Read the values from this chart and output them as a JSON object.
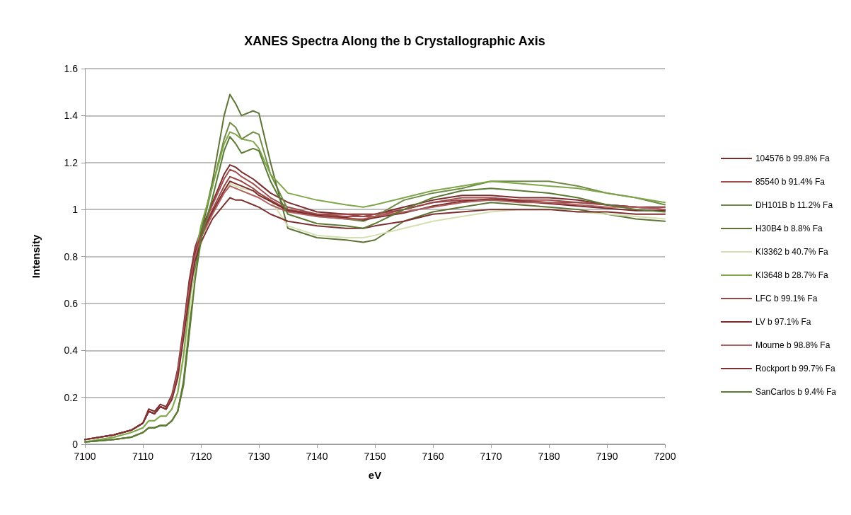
{
  "chart_data": {
    "type": "line",
    "title": "XANES Spectra Along the b Crystallographic Axis",
    "xlabel": "eV",
    "ylabel": "Intensity",
    "xlim": [
      7100,
      7200
    ],
    "xticks": [
      7100,
      7110,
      7120,
      7130,
      7140,
      7150,
      7160,
      7170,
      7180,
      7190,
      7200
    ],
    "ylim": [
      0,
      1.6
    ],
    "yticks": [
      0,
      0.2,
      0.4,
      0.6,
      0.8,
      1,
      1.2,
      1.4,
      1.6
    ],
    "grid": "y",
    "legend": "right",
    "marker": "none",
    "line_style": "solid",
    "x": [
      7100,
      7105,
      7108,
      7110,
      7111,
      7112,
      7113,
      7114,
      7115,
      7116,
      7117,
      7118,
      7119,
      7120,
      7122,
      7124,
      7125,
      7126,
      7127,
      7129,
      7130,
      7132,
      7135,
      7140,
      7145,
      7148,
      7150,
      7155,
      7160,
      7165,
      7170,
      7175,
      7180,
      7185,
      7190,
      7195,
      7200
    ],
    "series": [
      {
        "name": "104576 b 99.8% Fa",
        "color": "#7b2c2c",
        "values": [
          0.02,
          0.04,
          0.06,
          0.09,
          0.15,
          0.14,
          0.17,
          0.16,
          0.21,
          0.32,
          0.5,
          0.7,
          0.84,
          0.91,
          1.03,
          1.15,
          1.19,
          1.18,
          1.16,
          1.13,
          1.11,
          1.07,
          1.03,
          0.99,
          0.98,
          0.98,
          0.98,
          1.01,
          1.04,
          1.06,
          1.06,
          1.05,
          1.05,
          1.04,
          1.02,
          1.01,
          1.01
        ]
      },
      {
        "name": "85540 b 91.4% Fa",
        "color": "#a04e4e",
        "values": [
          0.02,
          0.04,
          0.06,
          0.09,
          0.14,
          0.13,
          0.16,
          0.15,
          0.2,
          0.31,
          0.48,
          0.68,
          0.83,
          0.9,
          1.02,
          1.13,
          1.17,
          1.16,
          1.14,
          1.11,
          1.09,
          1.05,
          1.01,
          0.98,
          0.97,
          0.97,
          0.97,
          1.0,
          1.03,
          1.05,
          1.05,
          1.04,
          1.04,
          1.03,
          1.02,
          1.01,
          1.0
        ]
      },
      {
        "name": "DH101B b 11.2% Fa",
        "color": "#6f8b45",
        "values": [
          0.01,
          0.02,
          0.03,
          0.05,
          0.07,
          0.07,
          0.08,
          0.08,
          0.1,
          0.14,
          0.27,
          0.5,
          0.74,
          0.9,
          1.1,
          1.3,
          1.37,
          1.35,
          1.3,
          1.33,
          1.32,
          1.15,
          1.0,
          0.97,
          0.96,
          0.95,
          0.97,
          1.04,
          1.07,
          1.09,
          1.12,
          1.12,
          1.12,
          1.1,
          1.07,
          1.05,
          1.02
        ]
      },
      {
        "name": "H30B4 b 8.8% Fa",
        "color": "#5d7436",
        "values": [
          0.01,
          0.02,
          0.03,
          0.05,
          0.07,
          0.07,
          0.08,
          0.08,
          0.1,
          0.14,
          0.26,
          0.48,
          0.72,
          0.9,
          1.12,
          1.4,
          1.49,
          1.45,
          1.4,
          1.42,
          1.41,
          1.2,
          0.92,
          0.88,
          0.87,
          0.86,
          0.87,
          0.95,
          0.99,
          1.01,
          1.03,
          1.02,
          1.01,
          1.0,
          0.98,
          0.96,
          0.95
        ]
      },
      {
        "name": "KI3362 b 40.7% Fa",
        "color": "#d4e0b0",
        "values": [
          0.01,
          0.03,
          0.05,
          0.07,
          0.1,
          0.1,
          0.12,
          0.12,
          0.15,
          0.22,
          0.36,
          0.55,
          0.72,
          0.85,
          0.99,
          1.08,
          1.11,
          1.1,
          1.09,
          1.08,
          1.07,
          1.04,
          0.93,
          0.89,
          0.88,
          0.88,
          0.89,
          0.92,
          0.95,
          0.97,
          0.99,
          1.0,
          1.0,
          0.99,
          0.98,
          0.97,
          0.96
        ]
      },
      {
        "name": "KI3648 b 28.7% Fa",
        "color": "#7fa64a",
        "values": [
          0.01,
          0.03,
          0.05,
          0.07,
          0.1,
          0.1,
          0.12,
          0.12,
          0.15,
          0.22,
          0.38,
          0.6,
          0.8,
          0.93,
          1.1,
          1.28,
          1.33,
          1.32,
          1.3,
          1.29,
          1.26,
          1.15,
          1.07,
          1.04,
          1.02,
          1.01,
          1.02,
          1.05,
          1.08,
          1.1,
          1.12,
          1.11,
          1.1,
          1.09,
          1.07,
          1.05,
          1.03
        ]
      },
      {
        "name": "LFC b 99.1% Fa",
        "color": "#9a4545",
        "values": [
          0.02,
          0.04,
          0.06,
          0.09,
          0.14,
          0.13,
          0.16,
          0.15,
          0.2,
          0.31,
          0.48,
          0.68,
          0.82,
          0.89,
          1.0,
          1.1,
          1.14,
          1.13,
          1.12,
          1.09,
          1.07,
          1.04,
          1.0,
          0.98,
          0.98,
          0.97,
          0.98,
          1.0,
          1.03,
          1.04,
          1.04,
          1.04,
          1.03,
          1.03,
          1.02,
          1.01,
          1.0
        ]
      },
      {
        "name": "LV b 97.1% Fa",
        "color": "#7a2a2a",
        "values": [
          0.02,
          0.04,
          0.06,
          0.09,
          0.14,
          0.13,
          0.16,
          0.15,
          0.2,
          0.3,
          0.47,
          0.67,
          0.81,
          0.88,
          0.99,
          1.08,
          1.12,
          1.11,
          1.1,
          1.08,
          1.06,
          1.035,
          0.995,
          0.975,
          0.965,
          0.955,
          0.965,
          0.985,
          1.015,
          1.035,
          1.045,
          1.035,
          1.025,
          1.015,
          1.005,
          0.995,
          0.995
        ]
      },
      {
        "name": "Mourne b 98.8% Fa",
        "color": "#b06060",
        "values": [
          0.02,
          0.04,
          0.06,
          0.09,
          0.14,
          0.13,
          0.16,
          0.15,
          0.2,
          0.3,
          0.47,
          0.66,
          0.8,
          0.88,
          0.98,
          1.07,
          1.1,
          1.09,
          1.08,
          1.06,
          1.05,
          1.02,
          0.99,
          0.97,
          0.96,
          0.96,
          0.97,
          0.99,
          1.01,
          1.03,
          1.04,
          1.03,
          1.03,
          1.02,
          1.01,
          1.01,
          1.0
        ]
      },
      {
        "name": "Rockport b 99.7% Fa",
        "color": "#7d3030",
        "values": [
          0.02,
          0.04,
          0.06,
          0.09,
          0.14,
          0.13,
          0.16,
          0.15,
          0.19,
          0.28,
          0.45,
          0.63,
          0.78,
          0.86,
          0.96,
          1.02,
          1.05,
          1.04,
          1.04,
          1.02,
          1.01,
          0.98,
          0.95,
          0.93,
          0.92,
          0.92,
          0.93,
          0.95,
          0.98,
          0.99,
          1.0,
          1.0,
          1.0,
          0.99,
          0.99,
          0.98,
          0.98
        ]
      },
      {
        "name": "SanCarlos b 9.4% Fa",
        "color": "#5b7a33",
        "values": [
          0.01,
          0.02,
          0.03,
          0.05,
          0.07,
          0.07,
          0.08,
          0.08,
          0.1,
          0.14,
          0.25,
          0.47,
          0.7,
          0.87,
          1.05,
          1.25,
          1.31,
          1.28,
          1.24,
          1.26,
          1.25,
          1.12,
          0.98,
          0.94,
          0.93,
          0.92,
          0.94,
          1.0,
          1.05,
          1.08,
          1.09,
          1.08,
          1.07,
          1.05,
          1.02,
          1.0,
          0.99
        ]
      }
    ]
  }
}
